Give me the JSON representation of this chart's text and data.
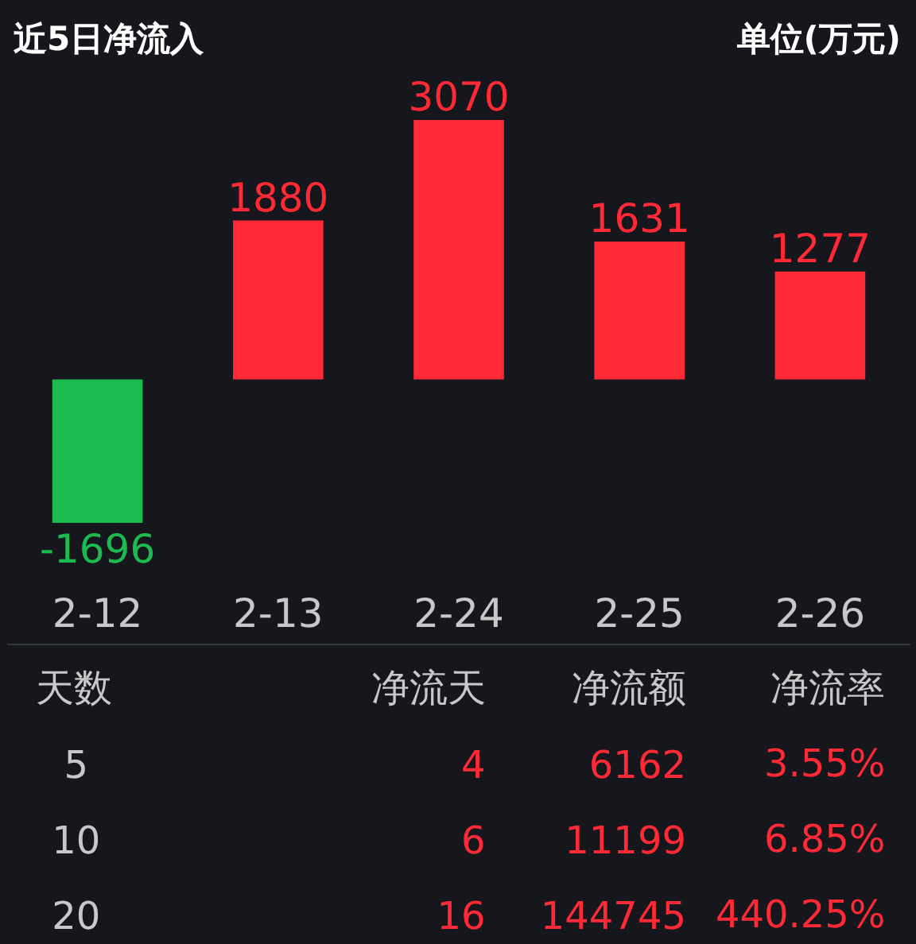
{
  "chart_data": [
    {
      "type": "bar",
      "title": "近5日净流入",
      "subtitle": "单位(万元)",
      "categories": [
        "2-12",
        "2-13",
        "2-24",
        "2-25",
        "2-26"
      ],
      "values": [
        -1696,
        1880,
        3070,
        1631,
        1277
      ],
      "colors": [
        "#1dbb4f",
        "#ff2a36",
        "#ff2a36",
        "#ff2a36",
        "#ff2a36"
      ],
      "data_labels": true
    },
    {
      "type": "other",
      "categories": [
        "天数",
        "净流天",
        "净流额",
        "净流率"
      ],
      "colors": [
        "#c8c8c8",
        "#ff2a36",
        "#ff2a36",
        "#ff2a36"
      ],
      "cell_labels": [
        [
          "5",
          "4",
          "6162",
          "3.55%"
        ],
        [
          "10",
          "6",
          "11199",
          "6.85%"
        ],
        [
          "20",
          "16",
          "144745",
          "440.25%"
        ]
      ]
    }
  ]
}
